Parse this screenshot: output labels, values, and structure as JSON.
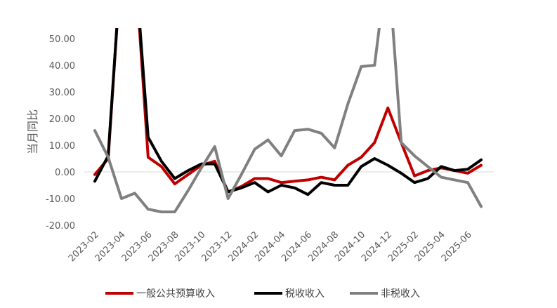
{
  "chart_data": {
    "type": "line",
    "title": "",
    "xlabel": "",
    "ylabel": "当月同比",
    "ylim": [
      -20,
      50
    ],
    "y_ticks": [
      "-20.00",
      "-10.00",
      "0.00",
      "10.00",
      "20.00",
      "30.00",
      "40.00",
      "50.00"
    ],
    "x_tick_labels": [
      "2023-02",
      "2023-04",
      "2023-06",
      "2023-08",
      "2023-10",
      "2023-12",
      "2024-02",
      "2024-04",
      "2024-06",
      "2024-08",
      "2024-10",
      "2024-12",
      "2025-02",
      "2025-04",
      "2025-06"
    ],
    "x": [
      "2023-02",
      "2023-03",
      "2023-04",
      "2023-05",
      "2023-06",
      "2023-07",
      "2023-08",
      "2023-09",
      "2023-10",
      "2023-11",
      "2023-12",
      "2024-01",
      "2024-02",
      "2024-03",
      "2024-04",
      "2024-05",
      "2024-06",
      "2024-07",
      "2024-08",
      "2024-09",
      "2024-10",
      "2024-11",
      "2024-12",
      "2025-01",
      "2025-02",
      "2025-03",
      "2025-04",
      "2025-05",
      "2025-06",
      "2025-07"
    ],
    "grid": false,
    "legend": "bottom",
    "series": [
      {
        "name": "一般公共预算收入",
        "color": "#c00000",
        "values": [
          -1.0,
          5.0,
          80.0,
          80.0,
          5.5,
          2.0,
          -4.5,
          -1.0,
          2.5,
          4.0,
          -7.5,
          -5.5,
          -2.5,
          -2.5,
          -4.0,
          -3.5,
          -3.0,
          -2.0,
          -3.0,
          2.5,
          5.5,
          11.0,
          24.0,
          11.0,
          -1.5,
          0.5,
          1.5,
          0.5,
          -0.5,
          2.5
        ]
      },
      {
        "name": "税收收入",
        "color": "#000000",
        "values": [
          -3.5,
          6.0,
          80.0,
          80.0,
          13.0,
          4.0,
          -2.5,
          0.5,
          3.0,
          3.0,
          -7.5,
          -6.0,
          -4.0,
          -7.5,
          -5.0,
          -6.0,
          -8.5,
          -4.0,
          -5.0,
          -5.0,
          2.0,
          5.0,
          2.5,
          -0.5,
          -4.0,
          -2.5,
          2.0,
          0.5,
          1.0,
          4.5
        ]
      },
      {
        "name": "非税收入",
        "color": "#808080",
        "values": [
          15.5,
          5.5,
          -10.0,
          -8.0,
          -14.0,
          -15.0,
          -15.0,
          -7.0,
          1.5,
          9.5,
          -10.0,
          -1.0,
          8.5,
          12.0,
          6.0,
          15.5,
          16.0,
          14.5,
          9.0,
          25.5,
          39.5,
          40.0,
          80.0,
          11.0,
          6.0,
          2.0,
          -2.0,
          -3.0,
          -4.0,
          -13.0
        ]
      }
    ]
  }
}
